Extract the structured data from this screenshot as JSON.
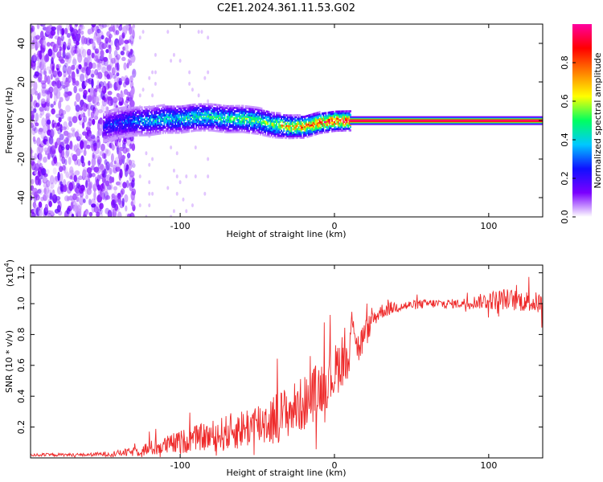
{
  "title": "C2E1.2024.361.11.53.G02",
  "colors": {
    "snr_line": "#ee2a2a",
    "colormap": [
      "#ffffff",
      "#7b00ff",
      "#1010ff",
      "#00c8ff",
      "#00ff60",
      "#ffff00",
      "#ff8000",
      "#ff0000",
      "#ff00a0"
    ]
  },
  "chart_data": [
    {
      "type": "heatmap",
      "title": "",
      "xlabel": "Height of straight line (km)",
      "ylabel": "Frequency (Hz)",
      "xlim": [
        -197,
        135
      ],
      "ylim": [
        -50,
        50
      ],
      "x_ticks": [
        -100,
        0,
        100
      ],
      "x_tick_labels": [
        "-100",
        "0",
        "100"
      ],
      "y_ticks": [
        -40,
        -20,
        0,
        20,
        40
      ],
      "y_tick_labels": [
        "-40",
        "-20",
        "0",
        "20",
        "40"
      ],
      "colorbar": {
        "label": "Normalized spectral amplitude",
        "range": [
          0,
          1
        ],
        "ticks": [
          0.0,
          0.2,
          0.4,
          0.6,
          0.8
        ],
        "tick_labels": [
          "0.0",
          "0.2",
          "0.4",
          "0.6",
          "0.8"
        ]
      },
      "series": [
        {
          "x": [
            -150,
            -140,
            -130,
            -120,
            -110,
            -100,
            -90,
            -80,
            -70,
            -60,
            -50,
            -40,
            -30,
            -20,
            -10,
            0,
            10,
            20,
            40,
            60,
            80,
            100,
            120,
            135
          ],
          "peak_frequency": [
            -3,
            -1,
            0,
            0,
            1,
            1,
            2,
            2,
            1,
            1,
            0,
            -2,
            -3,
            -3,
            -1,
            0,
            0,
            0,
            0,
            0,
            0,
            0,
            0,
            0
          ],
          "amplitude": [
            0.25,
            0.3,
            0.35,
            0.4,
            0.45,
            0.45,
            0.5,
            0.5,
            0.5,
            0.55,
            0.55,
            0.6,
            0.75,
            0.8,
            0.9,
            0.95,
            1.0,
            1.0,
            1.0,
            1.0,
            1.0,
            1.0,
            1.0,
            1.0
          ]
        }
      ],
      "notes_noise_region_x": [
        -197,
        -130
      ]
    },
    {
      "type": "line",
      "title": "",
      "xlabel": "Height of straight line (km)",
      "ylabel": "SNR (10 * v/v)",
      "y_multiplier": "(x10",
      "y_multiplier_exp": "4",
      "y_multiplier_close": ")",
      "xlim": [
        -197,
        135
      ],
      "ylim": [
        0,
        1.25
      ],
      "x_ticks": [
        -100,
        0,
        100
      ],
      "x_tick_labels": [
        "-100",
        "0",
        "100"
      ],
      "y_ticks": [
        0.2,
        0.4,
        0.6,
        0.8,
        1.0,
        1.2
      ],
      "y_tick_labels": [
        "0.2",
        "0.4",
        "0.6",
        "0.8",
        "1.0",
        "1.2"
      ],
      "series": [
        {
          "x": [
            -197,
            -180,
            -160,
            -140,
            -130,
            -120,
            -110,
            -100,
            -90,
            -80,
            -70,
            -60,
            -50,
            -40,
            -30,
            -20,
            -10,
            0,
            5,
            10,
            11,
            15,
            20,
            25,
            30,
            40,
            50,
            60,
            70,
            80,
            90,
            100,
            110,
            120,
            135
          ],
          "values": [
            0.02,
            0.02,
            0.02,
            0.03,
            0.04,
            0.06,
            0.08,
            0.1,
            0.13,
            0.14,
            0.16,
            0.19,
            0.22,
            0.25,
            0.3,
            0.35,
            0.45,
            0.55,
            0.65,
            0.6,
            1.0,
            0.7,
            0.8,
            0.9,
            0.95,
            0.98,
            0.99,
            1.0,
            1.0,
            1.0,
            1.01,
            1.02,
            1.03,
            1.02,
            1.0
          ],
          "amplitude_jitter": [
            0.01,
            0.01,
            0.01,
            0.02,
            0.03,
            0.05,
            0.06,
            0.08,
            0.08,
            0.1,
            0.12,
            0.13,
            0.15,
            0.17,
            0.17,
            0.18,
            0.18,
            0.18,
            0.18,
            0.2,
            0.1,
            0.12,
            0.1,
            0.06,
            0.05,
            0.04,
            0.03,
            0.03,
            0.03,
            0.03,
            0.04,
            0.06,
            0.07,
            0.07,
            0.07
          ]
        }
      ]
    }
  ]
}
